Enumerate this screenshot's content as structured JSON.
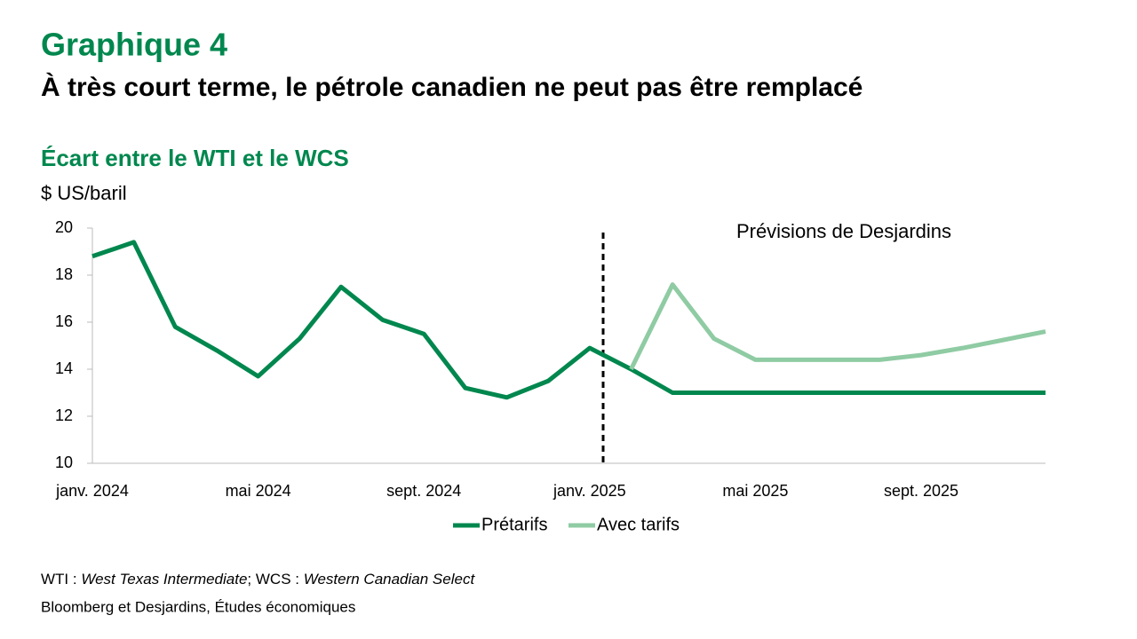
{
  "chart_data": {
    "type": "line",
    "title": "Graphique 4",
    "subtitle": "À très court terme, le pétrole canadien ne peut pas être remplacé",
    "chart_title": "Écart entre le WTI et le WCS",
    "y_label": "$ US/baril",
    "annotation": "Prévisions de Desjardins",
    "categories": [
      "janv. 2024",
      null,
      null,
      null,
      "mai 2024",
      null,
      null,
      null,
      "sept. 2024",
      null,
      null,
      null,
      "janv. 2025",
      null,
      null,
      null,
      "mai 2025",
      null,
      null,
      null,
      "sept. 2025",
      null,
      null,
      null
    ],
    "series": [
      {
        "name": "Prétarifs",
        "color": "#00874E",
        "values": [
          18.8,
          19.4,
          15.8,
          14.8,
          13.7,
          15.3,
          17.5,
          16.1,
          15.5,
          13.2,
          12.8,
          13.5,
          14.9,
          14.0,
          13.0,
          13.0,
          13.0,
          13.0,
          13.0,
          13.0,
          13.0,
          13.0,
          13.0,
          13.0
        ]
      },
      {
        "name": "Avec tarifs",
        "color": "#8FCBA3",
        "values": [
          null,
          null,
          null,
          null,
          null,
          null,
          null,
          null,
          null,
          null,
          null,
          null,
          null,
          14.0,
          17.6,
          15.3,
          14.4,
          14.4,
          14.4,
          14.4,
          14.6,
          14.9,
          15.25,
          15.6
        ]
      }
    ],
    "ylim": [
      10,
      20
    ],
    "yticks": [
      10,
      12,
      14,
      16,
      18,
      20
    ],
    "grid": false,
    "legend": "bottom",
    "note_parts": [
      "WTI : ",
      "West Texas Intermediate",
      "; WCS : ",
      "Western Canadian Select"
    ],
    "source": "Bloomberg et Desjardins, Études économiques"
  }
}
